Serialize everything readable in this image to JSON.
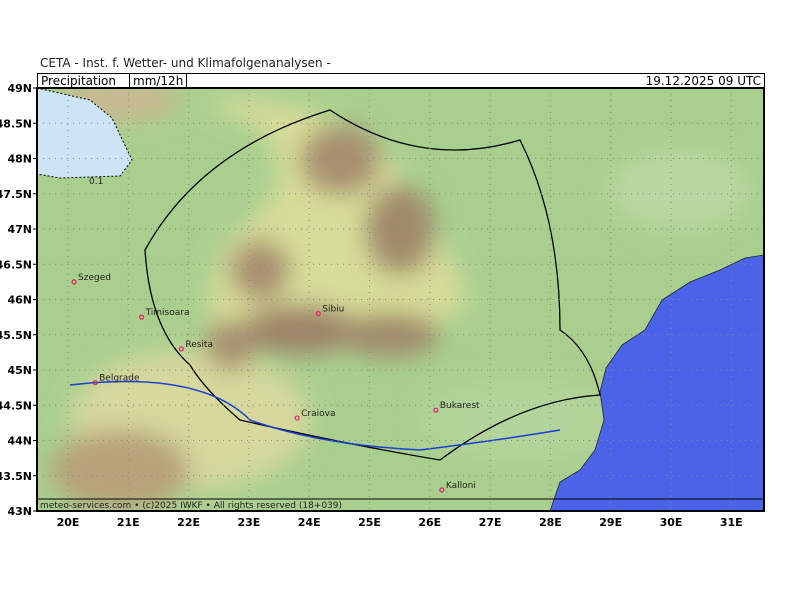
{
  "institute": "CETA - Inst. f. Wetter- und Klimafolgenanalysen -",
  "header": {
    "parameter": "Precipitation",
    "unit": "mm/12h",
    "datetime": "19.12.2025 09 UTC"
  },
  "footer": "meteo-services.com • (c)2025 IWKF • All rights reserved (18+039)",
  "contour_label": "0.1",
  "lat_labels": [
    "49N",
    "48.5N",
    "48N",
    "47.5N",
    "47N",
    "46.5N",
    "46N",
    "45.5N",
    "45N",
    "44.5N",
    "44N",
    "43.5N",
    "43N"
  ],
  "lon_labels": [
    "20E",
    "21E",
    "22E",
    "23E",
    "24E",
    "25E",
    "26E",
    "27E",
    "28E",
    "29E",
    "30E",
    "31E"
  ],
  "cities": [
    {
      "name": "Szeged",
      "lon": 20.1,
      "lat": 46.25
    },
    {
      "name": "Timisoara",
      "lon": 21.22,
      "lat": 45.75
    },
    {
      "name": "Resita",
      "lon": 21.88,
      "lat": 45.3
    },
    {
      "name": "Belgrade",
      "lon": 20.45,
      "lat": 44.82
    },
    {
      "name": "Sibiu",
      "lon": 24.15,
      "lat": 45.8
    },
    {
      "name": "Craiova",
      "lon": 23.8,
      "lat": 44.32
    },
    {
      "name": "Bukarest",
      "lon": 26.1,
      "lat": 44.43
    },
    {
      "name": "Kalloni",
      "lon": 26.2,
      "lat": 43.3
    }
  ],
  "colors": {
    "land": "#a9cf8f",
    "sea": "#4a63e8",
    "precip_light": "#cde4f5",
    "mountain": "#a08a6a",
    "grid": "#999999"
  }
}
